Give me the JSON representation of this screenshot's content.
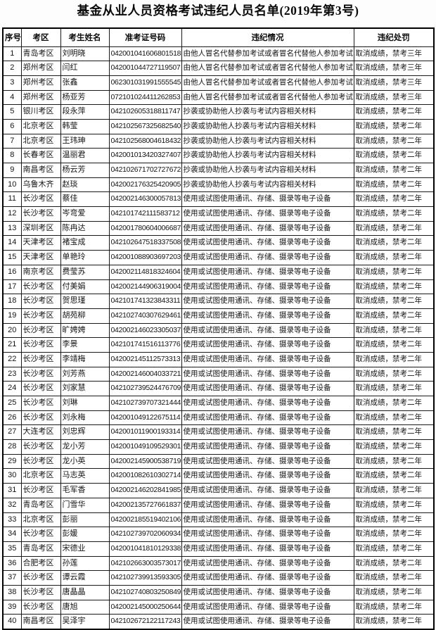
{
  "title": "基金从业人员资格考试违纪人员名单(2019年第3号)",
  "table": {
    "headers": [
      "序号",
      "考区",
      "考生姓名",
      "准考证号码",
      "违纪情况",
      "违纪处罚"
    ],
    "rows": [
      [
        "1",
        "青岛考区",
        "刘明晓",
        "042001041606801518",
        "由他人冒名代替参加考试或者冒名代替他人参加考试",
        "取消成绩，禁考三年"
      ],
      [
        "2",
        "郑州考区",
        "闫红",
        "042001044727119507",
        "由他人冒名代替参加考试或者冒名代替他人参加考试",
        "取消成绩，禁考三年"
      ],
      [
        "3",
        "郑州考区",
        "张鑫",
        "062301031991555545",
        "由他人冒名代替参加考试或者冒名代替他人参加考试",
        "取消成绩，禁考三年"
      ],
      [
        "4",
        "郑州考区",
        "杨亚芳",
        "072101024411262853",
        "由他人冒名代替参加考试或者冒名代替他人参加考试",
        "取消成绩，禁考三年"
      ],
      [
        "5",
        "银川考区",
        "段永萍",
        "042102605318811747",
        "抄袭或协助他人抄袭与考试内容相关材料",
        "取消成绩，禁考二年"
      ],
      [
        "6",
        "北京考区",
        "韩莹",
        "042102567325682540",
        "抄袭或协助他人抄袭与考试内容相关材料",
        "取消成绩，禁考二年"
      ],
      [
        "7",
        "北京考区",
        "王玮珅",
        "042102568004618432",
        "抄袭或协助他人抄袭与考试内容相关材料",
        "取消成绩，禁考二年"
      ],
      [
        "8",
        "长春考区",
        "温丽君",
        "042001013420327407",
        "抄袭或协助他人抄袭与考试内容相关材料",
        "取消成绩，禁考二年"
      ],
      [
        "9",
        "南昌考区",
        "杨云芳",
        "042102671702727672",
        "抄袭或协助他人抄袭与考试内容相关材料",
        "取消成绩，禁考二年"
      ],
      [
        "10",
        "乌鲁木齐",
        "赵琰",
        "042002176325420905",
        "抄袭或协助他人抄袭与考试内容相关材料",
        "取消成绩，禁考二年"
      ],
      [
        "11",
        "长沙考区",
        "蔡佳",
        "042002146300057813",
        "使用或试图使用通讯、存储、摄录等电子设备",
        "取消成绩，禁考二年"
      ],
      [
        "12",
        "长沙考区",
        "岑弯爱",
        "042101742111583712",
        "使用或试图使用通讯、存储、摄录等电子设备",
        "取消成绩，禁考二年"
      ],
      [
        "13",
        "深圳考区",
        "陈冉达",
        "042001780604006687",
        "使用或试图使用通讯、存储、摄录等电子设备",
        "取消成绩，禁考二年"
      ],
      [
        "14",
        "天津考区",
        "褚宝成",
        "042102647518337508",
        "使用或试图使用通讯、存储、摄录等电子设备",
        "取消成绩，禁考二年"
      ],
      [
        "15",
        "天津考区",
        "单艳玲",
        "042001088903697203",
        "使用或试图使用通讯、存储、摄录等电子设备",
        "取消成绩，禁考二年"
      ],
      [
        "16",
        "南京考区",
        "费莹苏",
        "042002114818324604",
        "使用或试图使用通讯、存储、摄录等电子设备",
        "取消成绩，禁考二年"
      ],
      [
        "17",
        "长沙考区",
        "付美娟",
        "042002144906319004",
        "使用或试图使用通讯、存储、摄录等电子设备",
        "取消成绩，禁考二年"
      ],
      [
        "18",
        "长沙考区",
        "贺思瑾",
        "042101741323843311",
        "使用或试图使用通讯、存储、摄录等电子设备",
        "取消成绩，禁考二年"
      ],
      [
        "19",
        "长沙考区",
        "胡苑柳",
        "042102740307629461",
        "使用或试图使用通讯、存储、摄录等电子设备",
        "取消成绩，禁考二年"
      ],
      [
        "20",
        "长沙考区",
        "旷娉娉",
        "042002146023305037",
        "使用或试图使用通讯、存储、摄录等电子设备",
        "取消成绩，禁考二年"
      ],
      [
        "21",
        "长沙考区",
        "李景",
        "042101741516113776",
        "使用或试图使用通讯、存储、摄录等电子设备",
        "取消成绩，禁考二年"
      ],
      [
        "22",
        "长沙考区",
        "李靖梅",
        "042002145112573313",
        "使用或试图使用通讯、存储、摄录等电子设备",
        "取消成绩，禁考二年"
      ],
      [
        "23",
        "长沙考区",
        "刘芳燕",
        "042002146004033721",
        "使用或试图使用通讯、存储、摄录等电子设备",
        "取消成绩，禁考二年"
      ],
      [
        "24",
        "长沙考区",
        "刘家慧",
        "042102739524476709",
        "使用或试图使用通讯、存储、摄录等电子设备",
        "取消成绩，禁考二年"
      ],
      [
        "25",
        "长沙考区",
        "刘琳",
        "042102739707321444",
        "使用或试图使用通讯、存储、摄录等电子设备",
        "取消成绩，禁考二年"
      ],
      [
        "26",
        "长沙考区",
        "刘永梅",
        "042001049122675114",
        "使用或试图使用通讯、存储、摄录等电子设备",
        "取消成绩，禁考二年"
      ],
      [
        "27",
        "大连考区",
        "刘忠辉",
        "042001011900193314",
        "使用或试图使用通讯、存储、摄录等电子设备",
        "取消成绩，禁考二年"
      ],
      [
        "28",
        "长沙考区",
        "龙小芳",
        "042001049109529301",
        "使用或试图使用通讯、存储、摄录等电子设备",
        "取消成绩，禁考二年"
      ],
      [
        "29",
        "长沙考区",
        "龙小英",
        "042002145900538719",
        "使用或试图使用通讯、存储、摄录等电子设备",
        "取消成绩，禁考二年"
      ],
      [
        "30",
        "北京考区",
        "马志英",
        "042001082610302714",
        "使用或试图使用通讯、存储、摄录等电子设备",
        "取消成绩，禁考二年"
      ],
      [
        "31",
        "长沙考区",
        "毛军香",
        "042002146202841985",
        "使用或试图使用通讯、存储、摄录等电子设备",
        "取消成绩，禁考二年"
      ],
      [
        "32",
        "青岛考区",
        "门雪华",
        "042002135727661837",
        "使用或试图使用通讯、存储、摄录等电子设备",
        "取消成绩，禁考二年"
      ],
      [
        "33",
        "北京考区",
        "彭丽",
        "042002185519402106",
        "使用或试图使用通讯、存储、摄录等电子设备",
        "取消成绩，禁考二年"
      ],
      [
        "34",
        "长沙考区",
        "彭媛",
        "042102739702060934",
        "使用或试图使用通讯、存储、摄录等电子设备",
        "取消成绩，禁考二年"
      ],
      [
        "35",
        "青岛考区",
        "宋德业",
        "042001041810129338",
        "使用或试图使用通讯、存储、摄录等电子设备",
        "取消成绩，禁考二年"
      ],
      [
        "36",
        "合肥考区",
        "孙莲",
        "042102663003573017",
        "使用或试图使用通讯、存储、摄录等电子设备",
        "取消成绩，禁考二年"
      ],
      [
        "37",
        "长沙考区",
        "谭云霞",
        "042102739913593305",
        "使用或试图使用通讯、存储、摄录等电子设备",
        "取消成绩，禁考二年"
      ],
      [
        "38",
        "长沙考区",
        "唐晶晶",
        "042102740803250849",
        "使用或试图使用通讯、存储、摄录等电子设备",
        "取消成绩，禁考二年"
      ],
      [
        "39",
        "长沙考区",
        "唐旭",
        "042002145000250644",
        "使用或试图使用通讯、存储、摄录等电子设备",
        "取消成绩，禁考二年"
      ],
      [
        "40",
        "南昌考区",
        "吴泽宇",
        "042102672122117243",
        "使用或试图使用通讯、存储、摄录等电子设备",
        "取消成绩，禁考二年"
      ]
    ]
  }
}
